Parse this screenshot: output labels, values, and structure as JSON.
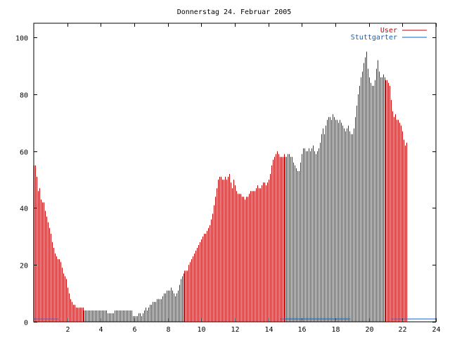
{
  "chart_data": {
    "type": "bar",
    "title": "Donnerstag 24. Februar 2005",
    "xlabel": "",
    "ylabel": "",
    "xlim": [
      0,
      24
    ],
    "ylim": [
      0,
      105
    ],
    "x_ticks": [
      2,
      4,
      6,
      8,
      10,
      12,
      14,
      16,
      18,
      20,
      22,
      24
    ],
    "y_ticks": [
      0,
      20,
      40,
      60,
      80,
      100
    ],
    "grid": false,
    "legend_position": "top-right",
    "series": [
      {
        "name": "User",
        "color": "#cc0000",
        "step_hours": 0.0833333,
        "values": [
          55,
          55,
          51,
          46,
          47,
          43,
          42,
          42,
          39,
          37,
          35,
          33,
          31,
          28,
          26,
          24,
          23,
          22,
          22,
          21,
          19,
          17,
          16,
          15,
          12,
          10,
          8,
          7,
          6,
          6,
          5,
          5,
          5,
          5,
          5,
          5,
          4,
          4,
          4,
          4,
          4,
          4,
          4,
          4,
          4,
          4,
          4,
          4,
          4,
          4,
          4,
          4,
          4,
          3,
          3,
          3,
          3,
          3,
          4,
          4,
          4,
          4,
          4,
          4,
          4,
          4,
          4,
          4,
          4,
          4,
          4,
          2,
          2,
          2,
          2,
          3,
          3,
          2,
          3,
          4,
          5,
          4,
          5,
          6,
          6,
          7,
          7,
          7,
          8,
          8,
          8,
          8,
          9,
          10,
          10,
          11,
          11,
          11,
          12,
          11,
          10,
          9,
          10,
          11,
          13,
          15,
          16,
          17,
          18,
          18,
          18,
          20,
          21,
          22,
          23,
          24,
          25,
          26,
          27,
          28,
          29,
          30,
          31,
          31,
          32,
          33,
          34,
          36,
          38,
          41,
          44,
          47,
          50,
          51,
          51,
          50,
          50,
          51,
          50,
          51,
          52,
          49,
          47,
          50,
          48,
          46,
          45,
          45,
          45,
          44,
          44,
          43,
          44,
          44,
          45,
          46,
          46,
          46,
          46,
          47,
          48,
          47,
          47,
          48,
          49,
          49,
          48,
          49,
          50,
          52,
          55,
          57,
          58,
          59,
          60,
          59,
          58,
          58,
          58,
          59,
          58,
          58,
          59,
          59,
          58,
          58,
          56,
          55,
          54,
          53,
          53,
          56,
          59,
          61,
          61,
          60,
          60,
          61,
          60,
          61,
          62,
          60,
          59,
          60,
          61,
          63,
          66,
          68,
          66,
          69,
          71,
          72,
          72,
          71,
          73,
          72,
          71,
          71,
          70,
          71,
          70,
          69,
          68,
          67,
          68,
          69,
          67,
          66,
          66,
          68,
          72,
          76,
          80,
          83,
          86,
          88,
          91,
          93,
          95,
          89,
          86,
          84,
          83,
          83,
          85,
          89,
          92,
          88,
          86,
          86,
          87,
          86,
          85,
          85,
          84,
          83,
          78,
          74,
          72,
          73,
          71,
          71,
          70,
          69,
          67,
          64,
          62,
          63
        ]
      },
      {
        "name": "Stuttgarter",
        "color": "#0066cc",
        "segments": [
          {
            "from": 0.0,
            "to": 1.5,
            "value": 1
          },
          {
            "from": 14.7,
            "to": 18.9,
            "value": 1
          },
          {
            "from": 21.3,
            "to": 24.0,
            "value": 1
          }
        ]
      }
    ]
  }
}
